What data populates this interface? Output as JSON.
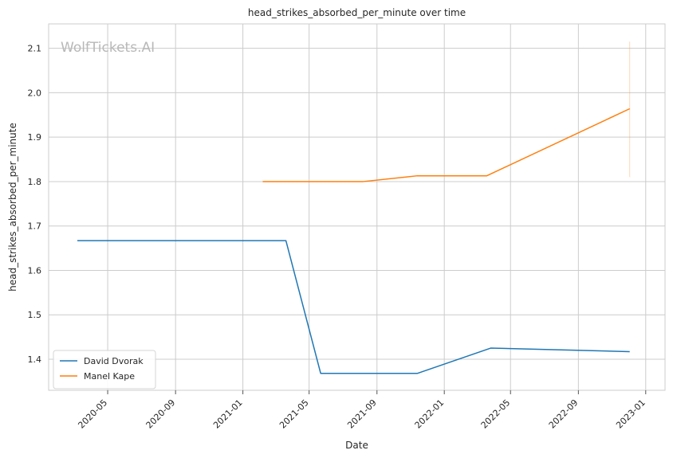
{
  "chart_data": {
    "type": "line",
    "title": "head_strikes_absorbed_per_minute over time",
    "xlabel": "Date",
    "ylabel": "head_strikes_absorbed_per_minute",
    "watermark": "WolfTickets.AI",
    "x_ticks": [
      "2020-05",
      "2020-09",
      "2021-01",
      "2021-05",
      "2021-09",
      "2022-01",
      "2022-05",
      "2022-09",
      "2023-01"
    ],
    "y_ticks": [
      1.4,
      1.5,
      1.6,
      1.7,
      1.8,
      1.9,
      2.0,
      2.1
    ],
    "xlim": [
      "2020-01-15",
      "2023-02-05"
    ],
    "ylim": [
      1.33,
      2.155
    ],
    "grid": true,
    "legend_position": "lower-left",
    "series": [
      {
        "name": "David Dvorak",
        "color": "#1f77b4",
        "points": [
          {
            "x": "2020-03-07",
            "y": 1.667
          },
          {
            "x": "2021-03-20",
            "y": 1.667
          },
          {
            "x": "2021-05-22",
            "y": 1.368
          },
          {
            "x": "2021-11-13",
            "y": 1.368
          },
          {
            "x": "2022-03-26",
            "y": 1.425
          },
          {
            "x": "2022-12-03",
            "y": 1.417
          }
        ]
      },
      {
        "name": "Manel Kape",
        "color": "#ff7f0e",
        "points": [
          {
            "x": "2021-02-06",
            "y": 1.8
          },
          {
            "x": "2021-08-07",
            "y": 1.8
          },
          {
            "x": "2021-11-13",
            "y": 1.813
          },
          {
            "x": "2022-03-19",
            "y": 1.813
          },
          {
            "x": "2022-12-03",
            "y": 1.964
          }
        ],
        "error_band": {
          "x": "2022-12-03",
          "low": 1.81,
          "high": 2.115
        }
      }
    ]
  }
}
